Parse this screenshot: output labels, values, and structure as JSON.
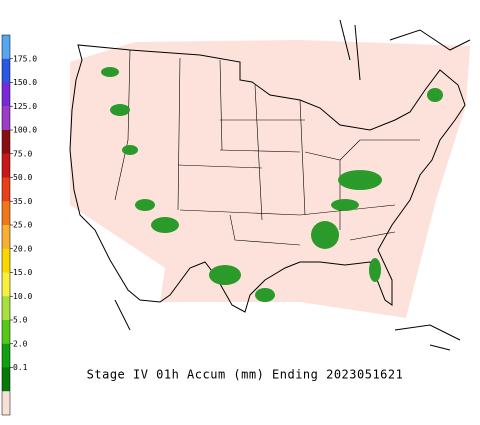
{
  "title": "Stage IV 01h Accum (mm) Ending 2023051621",
  "legend": {
    "labels": [
      "175.0",
      "150.0",
      "125.0",
      "100.0",
      "75.0",
      "50.0",
      "35.0",
      "25.0",
      "20.0",
      "15.0",
      "10.0",
      "5.0",
      "2.0",
      "0.1"
    ],
    "colors": [
      "#58a6f0",
      "#2a58e0",
      "#7a28d8",
      "#9a3cc8",
      "#8a1010",
      "#c81818",
      "#e84018",
      "#f07818",
      "#f8b030",
      "#f8d800",
      "#f8f040",
      "#a8e040",
      "#58c818",
      "#10a010",
      "#087808",
      "#f8e0d8"
    ]
  }
}
